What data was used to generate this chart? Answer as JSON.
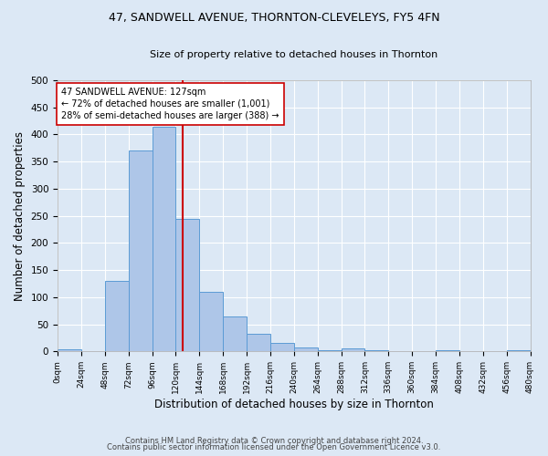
{
  "title1": "47, SANDWELL AVENUE, THORNTON-CLEVELEYS, FY5 4FN",
  "title2": "Size of property relative to detached houses in Thornton",
  "xlabel": "Distribution of detached houses by size in Thornton",
  "ylabel": "Number of detached properties",
  "footnote1": "Contains HM Land Registry data © Crown copyright and database right 2024.",
  "footnote2": "Contains public sector information licensed under the Open Government Licence v3.0.",
  "bin_labels": [
    "0sqm",
    "24sqm",
    "48sqm",
    "72sqm",
    "96sqm",
    "120sqm",
    "144sqm",
    "168sqm",
    "192sqm",
    "216sqm",
    "240sqm",
    "264sqm",
    "288sqm",
    "312sqm",
    "336sqm",
    "360sqm",
    "384sqm",
    "408sqm",
    "432sqm",
    "456sqm",
    "480sqm"
  ],
  "bar_values": [
    4,
    0,
    130,
    370,
    415,
    245,
    110,
    65,
    33,
    15,
    8,
    2,
    6,
    2,
    0,
    0,
    2,
    0,
    0,
    3
  ],
  "bin_edges": [
    0,
    24,
    48,
    72,
    96,
    120,
    144,
    168,
    192,
    216,
    240,
    264,
    288,
    312,
    336,
    360,
    384,
    408,
    432,
    456,
    480
  ],
  "bar_color": "#aec6e8",
  "bar_edge_color": "#5b9bd5",
  "property_sqm": 127,
  "vline_color": "#cc0000",
  "annotation_line1": "47 SANDWELL AVENUE: 127sqm",
  "annotation_line2": "← 72% of detached houses are smaller (1,001)",
  "annotation_line3": "28% of semi-detached houses are larger (388) →",
  "annotation_box_color": "#ffffff",
  "annotation_box_edge": "#cc0000",
  "ylim": [
    0,
    500
  ],
  "background_color": "#dce8f5",
  "grid_color": "#ffffff"
}
